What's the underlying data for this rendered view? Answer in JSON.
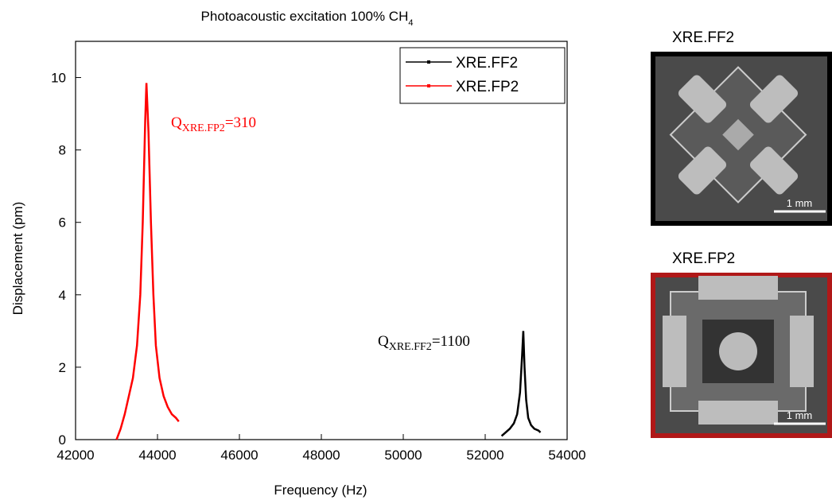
{
  "chart_data": {
    "type": "line",
    "title": "Photoacoustic excitation 100% CH",
    "title_subscript": "4",
    "x_label": "Frequency (Hz)",
    "y_label": "Displacement (pm)",
    "xlim": [
      42000,
      54000
    ],
    "ylim": [
      0,
      11
    ],
    "xticks": [
      42000,
      44000,
      46000,
      48000,
      50000,
      52000,
      54000
    ],
    "yticks": [
      0,
      2,
      4,
      6,
      8,
      10
    ],
    "grid": false,
    "legend": "upper right",
    "series": [
      {
        "name": "XRE.FF2",
        "color": "#000000",
        "x": [
          52400,
          52500,
          52600,
          52700,
          52780,
          52850,
          52900,
          52930,
          52960,
          53000,
          53050,
          53120,
          53200,
          53300,
          53350
        ],
        "values": [
          0.1,
          0.2,
          0.3,
          0.45,
          0.7,
          1.3,
          2.3,
          3.0,
          2.0,
          1.1,
          0.6,
          0.4,
          0.3,
          0.25,
          0.2
        ]
      },
      {
        "name": "XRE.FP2",
        "color": "#ff0000",
        "x": [
          43000,
          43100,
          43200,
          43300,
          43400,
          43500,
          43580,
          43640,
          43700,
          43730,
          43780,
          43840,
          43900,
          43960,
          44050,
          44150,
          44250,
          44350,
          44450,
          44520
        ],
        "values": [
          0,
          0.3,
          0.7,
          1.2,
          1.7,
          2.6,
          4.0,
          6.0,
          8.8,
          9.85,
          8.5,
          6.0,
          4.0,
          2.6,
          1.7,
          1.2,
          0.9,
          0.7,
          0.6,
          0.5
        ]
      }
    ],
    "annotations": [
      {
        "text": "Q",
        "subscript": "XRE.FP2",
        "suffix": "=310",
        "color": "#ff0000"
      },
      {
        "text": "Q",
        "subscript": "XRE.FF2",
        "suffix": "=1100",
        "color": "#000000"
      }
    ]
  },
  "images": [
    {
      "label": "XRE.FF2",
      "scale_bar": "1 mm",
      "border": "#000000"
    },
    {
      "label": "XRE.FP2",
      "scale_bar": "1 mm",
      "border": "#b01818"
    }
  ]
}
